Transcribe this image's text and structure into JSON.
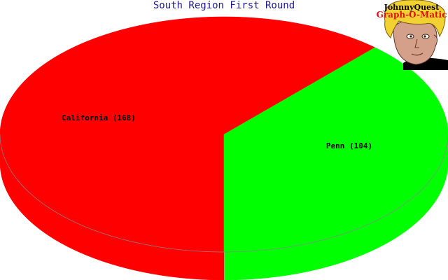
{
  "chart_data": {
    "type": "pie",
    "title": "South Region First Round",
    "slices": [
      {
        "label": "California (168)",
        "category": "California",
        "value": 168,
        "color": "#ff0000",
        "side_color": "#ff0000"
      },
      {
        "label": "Penn (104)",
        "category": "Penn",
        "value": 104,
        "color": "#00ff00",
        "side_color": "#00ff00"
      }
    ],
    "three_d": true
  },
  "logo": {
    "line1": "JohnnyQuest",
    "line2": "Graph-O-Matic"
  }
}
